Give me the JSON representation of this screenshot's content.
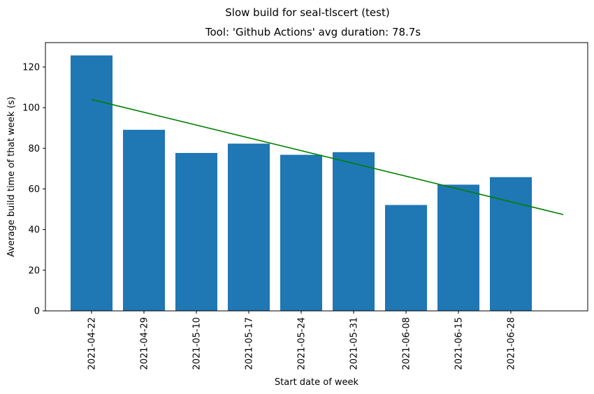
{
  "suptitle": "Slow build for seal-tlscert (test)",
  "chart_data": {
    "type": "bar",
    "title": "Tool: 'Github Actions' avg duration: 78.7s",
    "xlabel": "Start date of week",
    "ylabel": "Average build time of that week (s)",
    "categories": [
      "2021-04-22",
      "2021-04-29",
      "2021-05-10",
      "2021-05-17",
      "2021-05-24",
      "2021-05-31",
      "2021-06-08",
      "2021-06-15",
      "2021-06-28"
    ],
    "series": [
      {
        "values": [
          125.7,
          89.1,
          77.7,
          82.3,
          76.8,
          78.1,
          52.1,
          62.1,
          65.8
        ],
        "color": "#1f77b4"
      }
    ],
    "trend_line": {
      "color": "#008000",
      "start": 104.0,
      "end": 47.4,
      "extends_to_next_category": true
    },
    "yticks": [
      0,
      20,
      40,
      60,
      80,
      100,
      120
    ],
    "ylim": [
      0,
      132
    ],
    "grid": false,
    "legend": "none"
  }
}
